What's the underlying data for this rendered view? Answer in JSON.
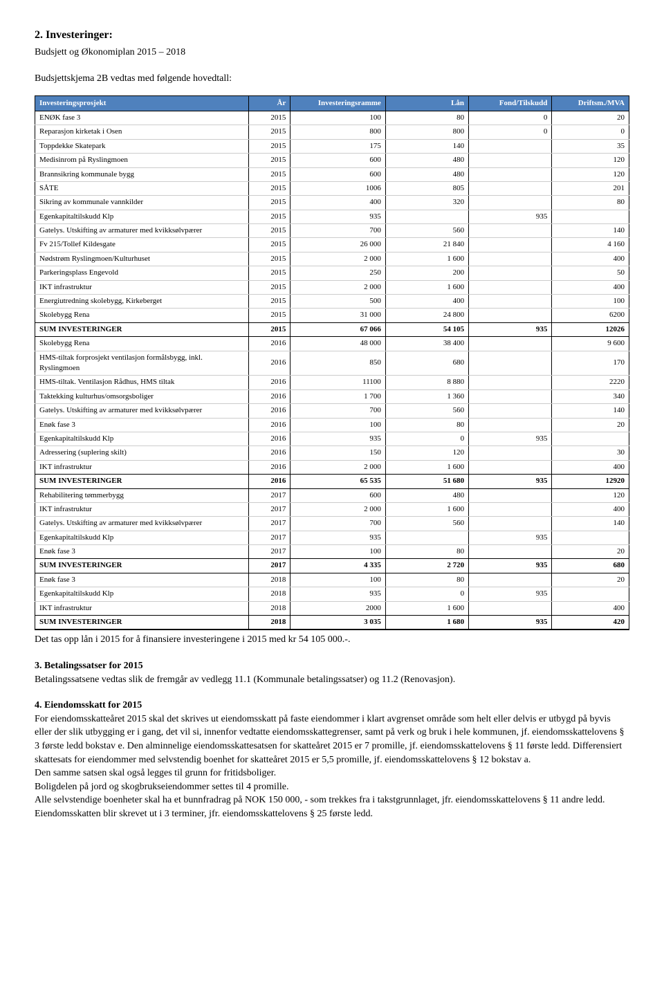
{
  "section2": {
    "heading": "2. Investeringer:",
    "sub": "Budsjett og Økonomiplan 2015 – 2018",
    "intro": "Budsjettskjema 2B vedtas med følgende hovedtall:"
  },
  "table": {
    "header_bg": "#4f81bd",
    "header_fg": "#ffffff",
    "columns": [
      "Investeringsprosjekt",
      "År",
      "Investeringsramme",
      "Lån",
      "Fond/Tilskudd",
      "Driftsm./MVA"
    ],
    "rows": [
      {
        "label": "ENØK fase 3",
        "y": "2015",
        "a": "100",
        "b": "80",
        "c": "0",
        "d": "20"
      },
      {
        "label": "Reparasjon kirketak i Osen",
        "y": "2015",
        "a": "800",
        "b": "800",
        "c": "0",
        "d": "0"
      },
      {
        "label": "Toppdekke Skatepark",
        "y": "2015",
        "a": "175",
        "b": "140",
        "c": "",
        "d": "35"
      },
      {
        "label": "Medisinrom på Ryslingmoen",
        "y": "2015",
        "a": "600",
        "b": "480",
        "c": "",
        "d": "120"
      },
      {
        "label": "Brannsikring kommunale bygg",
        "y": "2015",
        "a": "600",
        "b": "480",
        "c": "",
        "d": "120"
      },
      {
        "label": "SÅTE",
        "y": "2015",
        "a": "1006",
        "b": "805",
        "c": "",
        "d": "201"
      },
      {
        "label": "Sikring av kommunale vannkilder",
        "y": "2015",
        "a": "400",
        "b": "320",
        "c": "",
        "d": "80"
      },
      {
        "label": "Egenkapitaltilskudd Klp",
        "y": "2015",
        "a": "935",
        "b": "",
        "c": "935",
        "d": ""
      },
      {
        "label": "Gatelys. Utskifting av armaturer med kvikksølvpærer",
        "y": "2015",
        "a": "700",
        "b": "560",
        "c": "",
        "d": "140"
      },
      {
        "label": "Fv 215/Tollef Kildesgate",
        "y": "2015",
        "a": "26 000",
        "b": "21 840",
        "c": "",
        "d": "4 160"
      },
      {
        "label": "Nødstrøm Ryslingmoen/Kulturhuset",
        "y": "2015",
        "a": "2 000",
        "b": "1 600",
        "c": "",
        "d": "400"
      },
      {
        "label": "Parkeringsplass Engevold",
        "y": "2015",
        "a": "250",
        "b": "200",
        "c": "",
        "d": "50"
      },
      {
        "label": "IKT infrastruktur",
        "y": "2015",
        "a": "2 000",
        "b": "1 600",
        "c": "",
        "d": "400"
      },
      {
        "label": "Energiutredning skolebygg, Kirkeberget",
        "y": "2015",
        "a": "500",
        "b": "400",
        "c": "",
        "d": "100"
      },
      {
        "label": "Skolebygg Rena",
        "y": "2015",
        "a": "31 000",
        "b": "24 800",
        "c": "",
        "d": "6200",
        "end": true
      },
      {
        "label": "SUM INVESTERINGER",
        "y": "2015",
        "a": "67 066",
        "b": "54 105",
        "c": "935",
        "d": "12026",
        "sum": true
      },
      {
        "label": "Skolebygg Rena",
        "y": "2016",
        "a": "48 000",
        "b": "38 400",
        "c": "",
        "d": "9 600"
      },
      {
        "label": "HMS-tiltak forprosjekt ventilasjon formålsbygg, inkl. Ryslingmoen",
        "y": "2016",
        "a": "850",
        "b": "680",
        "c": "",
        "d": "170"
      },
      {
        "label": "HMS-tiltak. Ventilasjon Rådhus, HMS tiltak",
        "y": "2016",
        "a": "11100",
        "b": "8 880",
        "c": "",
        "d": "2220"
      },
      {
        "label": "Taktekking kulturhus/omsorgsboliger",
        "y": "2016",
        "a": "1 700",
        "b": "1 360",
        "c": "",
        "d": "340"
      },
      {
        "label": "Gatelys. Utskifting av armaturer med kvikksølvpærer",
        "y": "2016",
        "a": "700",
        "b": "560",
        "c": "",
        "d": "140"
      },
      {
        "label": "Enøk fase 3",
        "y": "2016",
        "a": "100",
        "b": "80",
        "c": "",
        "d": "20"
      },
      {
        "label": "Egenkapitaltilskudd Klp",
        "y": "2016",
        "a": "935",
        "b": "0",
        "c": "935",
        "d": ""
      },
      {
        "label": "Adressering (suplering skilt)",
        "y": "2016",
        "a": "150",
        "b": "120",
        "c": "",
        "d": "30"
      },
      {
        "label": "IKT infrastruktur",
        "y": "2016",
        "a": "2 000",
        "b": "1 600",
        "c": "",
        "d": "400",
        "end": true
      },
      {
        "label": "SUM INVESTERINGER",
        "y": "2016",
        "a": "65 535",
        "b": "51 680",
        "c": "935",
        "d": "12920",
        "sum": true
      },
      {
        "label": "Rehabilitering tømmerbygg",
        "y": "2017",
        "a": "600",
        "b": "480",
        "c": "",
        "d": "120"
      },
      {
        "label": "IKT infrastruktur",
        "y": "2017",
        "a": "2 000",
        "b": "1 600",
        "c": "",
        "d": "400"
      },
      {
        "label": "Gatelys. Utskifting av armaturer med kvikksølvpærer",
        "y": "2017",
        "a": "700",
        "b": "560",
        "c": "",
        "d": "140"
      },
      {
        "label": "Egenkapitaltilskudd Klp",
        "y": "2017",
        "a": "935",
        "b": "",
        "c": "935",
        "d": ""
      },
      {
        "label": "Enøk fase 3",
        "y": "2017",
        "a": "100",
        "b": "80",
        "c": "",
        "d": "20",
        "end": true
      },
      {
        "label": "SUM INVESTERINGER",
        "y": "2017",
        "a": "4 335",
        "b": "2 720",
        "c": "935",
        "d": "680",
        "sum": true
      },
      {
        "label": "Enøk fase 3",
        "y": "2018",
        "a": "100",
        "b": "80",
        "c": "",
        "d": "20"
      },
      {
        "label": "Egenkapitaltilskudd Klp",
        "y": "2018",
        "a": "935",
        "b": "0",
        "c": "935",
        "d": ""
      },
      {
        "label": "IKT infrastruktur",
        "y": "2018",
        "a": "2000",
        "b": "1 600",
        "c": "",
        "d": "400",
        "end": true
      },
      {
        "label": "SUM INVESTERINGER",
        "y": "2018",
        "a": "3 035",
        "b": "1 680",
        "c": "935",
        "d": "420",
        "sum": true,
        "last": true
      }
    ]
  },
  "after_table": "Det tas opp lån i 2015 for å finansiere investeringene i 2015 med kr 54 105 000.-.",
  "section3": {
    "heading": "3. Betalingssatser for 2015",
    "body": "Betalingssatsene vedtas slik de fremgår av vedlegg 11.1 (Kommunale betalingssatser) og 11.2 (Renovasjon)."
  },
  "section4": {
    "heading": "4. Eiendomsskatt for 2015",
    "p1": "For eiendomsskatteåret 2015 skal det skrives ut eiendomsskatt på faste eiendommer i klart avgrenset område som helt eller delvis er utbygd på byvis eller der slik utbygging er i gang, det vil si, innenfor vedtatte eiendomsskattegrenser, samt på verk og bruk i hele kommunen, jf. eiendomsskattelovens § 3 første ledd bokstav e. Den alminnelige eiendomsskattesatsen for skatteåret 2015 er 7 promille, jf. eiendomsskattelovens § 11 første ledd. Differensiert skattesats for eiendommer med selvstendig boenhet for skatteåret 2015 er 5,5 promille, jf. eiendomsskattelovens § 12 bokstav a.",
    "p2": "Den samme satsen skal også legges til grunn for fritidsboliger.",
    "p3": "Boligdelen på jord og skogbrukseiendommer settes til 4 promille.",
    "p4": "Alle selvstendige boenheter skal ha et bunnfradrag på NOK 150 000, - som trekkes fra i takstgrunnlaget, jfr. eiendomsskattelovens § 11 andre ledd.",
    "p5": "Eiendomsskatten blir skrevet ut i 3 terminer, jfr. eiendomsskattelovens § 25 første ledd."
  }
}
